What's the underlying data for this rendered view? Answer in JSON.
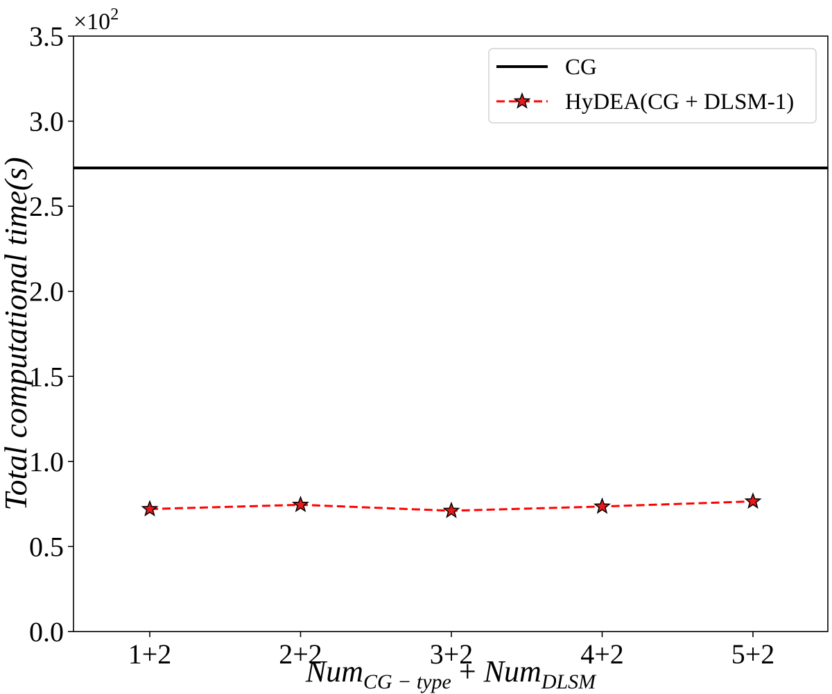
{
  "chart_data": {
    "type": "line",
    "categories": [
      "1+2",
      "2+2",
      "3+2",
      "4+2",
      "5+2"
    ],
    "y_ticks": [
      "0.0",
      "0.5",
      "1.0",
      "1.5",
      "2.0",
      "2.5",
      "3.0",
      "3.5"
    ],
    "y_scale_prefix": "×10",
    "y_scale_exponent": "2",
    "ylim": [
      0,
      350
    ],
    "ylabel": "Total computational time(s)",
    "xlabel": {
      "part1": "Num",
      "sub1": "CG − type",
      "plus": " + ",
      "part2": "Num",
      "sub2": "DLSM"
    },
    "series": [
      {
        "name": "CG",
        "style": "solid",
        "color": "#000000",
        "constant": 272.5
      },
      {
        "name": "HyDEA(CG + DLSM-1)",
        "style": "dashed",
        "color": "#ff0000",
        "marker": "star",
        "marker_fill": "#e41a1c",
        "values": [
          72,
          74.5,
          71,
          73.5,
          76.5
        ]
      }
    ],
    "legend_position": "top-right",
    "grid": false
  }
}
